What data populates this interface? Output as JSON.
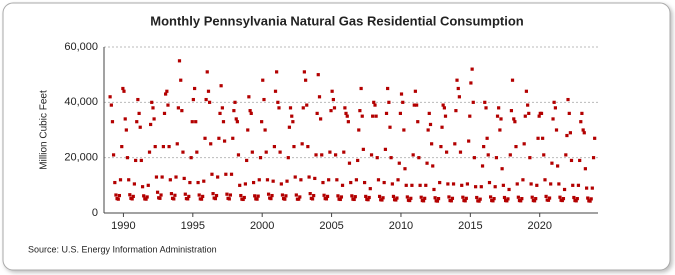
{
  "chart_data": {
    "type": "scatter",
    "title": "Monthly Pennsylvania Natural Gas Residential Consumption",
    "y_label": "Million Cubic Feet",
    "source": "Source: U.S. Energy Information Administration",
    "color": "#b30000",
    "grid": true,
    "xlim": [
      1988.6,
      2024.2
    ],
    "xticks": [
      1990,
      1995,
      2000,
      2005,
      2010,
      2015,
      2020
    ],
    "ylim": [
      0,
      60000
    ],
    "yticks": [
      {
        "value": 0,
        "label": "0"
      },
      {
        "value": 20000,
        "label": "20,000"
      },
      {
        "value": 40000,
        "label": "40,000"
      },
      {
        "value": 60000,
        "label": "60,000"
      }
    ],
    "x": [
      1989.04,
      1989.13,
      1989.21,
      1989.29,
      1989.38,
      1989.46,
      1989.54,
      1989.63,
      1989.71,
      1989.79,
      1989.88,
      1989.96,
      1990.04,
      1990.13,
      1990.21,
      1990.29,
      1990.38,
      1990.46,
      1990.54,
      1990.63,
      1990.71,
      1990.79,
      1990.88,
      1990.96,
      1991.04,
      1991.13,
      1991.21,
      1991.29,
      1991.38,
      1991.46,
      1991.54,
      1991.63,
      1991.71,
      1991.79,
      1991.88,
      1991.96,
      1992.04,
      1992.13,
      1992.21,
      1992.29,
      1992.38,
      1992.46,
      1992.54,
      1992.63,
      1992.71,
      1992.79,
      1992.88,
      1992.96,
      1993.04,
      1993.13,
      1993.21,
      1993.29,
      1993.38,
      1993.46,
      1993.54,
      1993.63,
      1993.71,
      1993.79,
      1993.88,
      1993.96,
      1994.04,
      1994.13,
      1994.21,
      1994.29,
      1994.38,
      1994.46,
      1994.54,
      1994.63,
      1994.71,
      1994.79,
      1994.88,
      1994.96,
      1995.04,
      1995.13,
      1995.21,
      1995.29,
      1995.38,
      1995.46,
      1995.54,
      1995.63,
      1995.71,
      1995.79,
      1995.88,
      1995.96,
      1996.04,
      1996.13,
      1996.21,
      1996.29,
      1996.38,
      1996.46,
      1996.54,
      1996.63,
      1996.71,
      1996.79,
      1996.88,
      1996.96,
      1997.04,
      1997.13,
      1997.21,
      1997.29,
      1997.38,
      1997.46,
      1997.54,
      1997.63,
      1997.71,
      1997.79,
      1997.88,
      1997.96,
      1998.04,
      1998.13,
      1998.21,
      1998.29,
      1998.38,
      1998.46,
      1998.54,
      1998.63,
      1998.71,
      1998.79,
      1998.88,
      1998.96,
      1999.04,
      1999.13,
      1999.21,
      1999.29,
      1999.38,
      1999.46,
      1999.54,
      1999.63,
      1999.71,
      1999.79,
      1999.88,
      1999.96,
      2000.04,
      2000.13,
      2000.21,
      2000.29,
      2000.38,
      2000.46,
      2000.54,
      2000.63,
      2000.71,
      2000.79,
      2000.88,
      2000.96,
      2001.04,
      2001.13,
      2001.21,
      2001.29,
      2001.38,
      2001.46,
      2001.54,
      2001.63,
      2001.71,
      2001.79,
      2001.88,
      2001.96,
      2002.04,
      2002.13,
      2002.21,
      2002.29,
      2002.38,
      2002.46,
      2002.54,
      2002.63,
      2002.71,
      2002.79,
      2002.88,
      2002.96,
      2003.04,
      2003.13,
      2003.21,
      2003.29,
      2003.38,
      2003.46,
      2003.54,
      2003.63,
      2003.71,
      2003.79,
      2003.88,
      2003.96,
      2004.04,
      2004.13,
      2004.21,
      2004.29,
      2004.38,
      2004.46,
      2004.54,
      2004.63,
      2004.71,
      2004.79,
      2004.88,
      2004.96,
      2005.04,
      2005.13,
      2005.21,
      2005.29,
      2005.38,
      2005.46,
      2005.54,
      2005.63,
      2005.71,
      2005.79,
      2005.88,
      2005.96,
      2006.04,
      2006.13,
      2006.21,
      2006.29,
      2006.38,
      2006.46,
      2006.54,
      2006.63,
      2006.71,
      2006.79,
      2006.88,
      2006.96,
      2007.04,
      2007.13,
      2007.21,
      2007.29,
      2007.38,
      2007.46,
      2007.54,
      2007.63,
      2007.71,
      2007.79,
      2007.88,
      2007.96,
      2008.04,
      2008.13,
      2008.21,
      2008.29,
      2008.38,
      2008.46,
      2008.54,
      2008.63,
      2008.71,
      2008.79,
      2008.88,
      2008.96,
      2009.04,
      2009.13,
      2009.21,
      2009.29,
      2009.38,
      2009.46,
      2009.54,
      2009.63,
      2009.71,
      2009.79,
      2009.88,
      2009.96,
      2010.04,
      2010.13,
      2010.21,
      2010.29,
      2010.38,
      2010.46,
      2010.54,
      2010.63,
      2010.71,
      2010.79,
      2010.88,
      2010.96,
      2011.04,
      2011.13,
      2011.21,
      2011.29,
      2011.38,
      2011.46,
      2011.54,
      2011.63,
      2011.71,
      2011.79,
      2011.88,
      2011.96,
      2012.04,
      2012.13,
      2012.21,
      2012.29,
      2012.38,
      2012.46,
      2012.54,
      2012.63,
      2012.71,
      2012.79,
      2012.88,
      2012.96,
      2013.04,
      2013.13,
      2013.21,
      2013.29,
      2013.38,
      2013.46,
      2013.54,
      2013.63,
      2013.71,
      2013.79,
      2013.88,
      2013.96,
      2014.04,
      2014.13,
      2014.21,
      2014.29,
      2014.38,
      2014.46,
      2014.54,
      2014.63,
      2014.71,
      2014.79,
      2014.88,
      2014.96,
      2015.04,
      2015.13,
      2015.21,
      2015.29,
      2015.38,
      2015.46,
      2015.54,
      2015.63,
      2015.71,
      2015.79,
      2015.88,
      2015.96,
      2016.04,
      2016.13,
      2016.21,
      2016.29,
      2016.38,
      2016.46,
      2016.54,
      2016.63,
      2016.71,
      2016.79,
      2016.88,
      2016.96,
      2017.04,
      2017.13,
      2017.21,
      2017.29,
      2017.38,
      2017.46,
      2017.54,
      2017.63,
      2017.71,
      2017.79,
      2017.88,
      2017.96,
      2018.04,
      2018.13,
      2018.21,
      2018.29,
      2018.38,
      2018.46,
      2018.54,
      2018.63,
      2018.71,
      2018.79,
      2018.88,
      2018.96,
      2019.04,
      2019.13,
      2019.21,
      2019.29,
      2019.38,
      2019.46,
      2019.54,
      2019.63,
      2019.71,
      2019.79,
      2019.88,
      2019.96,
      2020.04,
      2020.13,
      2020.21,
      2020.29,
      2020.38,
      2020.46,
      2020.54,
      2020.63,
      2020.71,
      2020.79,
      2020.88,
      2020.96,
      2021.04,
      2021.13,
      2021.21,
      2021.29,
      2021.38,
      2021.46,
      2021.54,
      2021.63,
      2021.71,
      2021.79,
      2021.88,
      2021.96,
      2022.04,
      2022.13,
      2022.21,
      2022.29,
      2022.38,
      2022.46,
      2022.54,
      2022.63,
      2022.71,
      2022.79,
      2022.88,
      2022.96,
      2023.04,
      2023.13,
      2023.21,
      2023.29,
      2023.38,
      2023.46,
      2023.54,
      2023.63,
      2023.71,
      2023.79,
      2023.88,
      2023.96
    ],
    "values": [
      42000,
      39000,
      33000,
      21000,
      11000,
      6500,
      5200,
      5000,
      6300,
      12000,
      24000,
      45000,
      44000,
      34000,
      30000,
      20000,
      12000,
      6600,
      5300,
      5100,
      6000,
      10500,
      19000,
      33000,
      41000,
      36000,
      31000,
      19000,
      9500,
      6200,
      5100,
      5000,
      5800,
      10000,
      22000,
      32000,
      40000,
      38000,
      34000,
      24000,
      13000,
      7500,
      5500,
      5300,
      6500,
      13000,
      24000,
      36000,
      43000,
      44000,
      39000,
      24000,
      12000,
      7000,
      5300,
      5100,
      6400,
      13000,
      25000,
      38000,
      55000,
      48000,
      37000,
      22000,
      12500,
      6800,
      5200,
      5100,
      6000,
      11000,
      20000,
      33000,
      41000,
      45000,
      33000,
      22000,
      11000,
      6500,
      5100,
      5000,
      6000,
      11500,
      27000,
      41000,
      51000,
      44000,
      40000,
      25000,
      14000,
      7000,
      5400,
      5200,
      6300,
      13000,
      27000,
      36000,
      46000,
      38000,
      33000,
      26000,
      14000,
      6800,
      5300,
      5100,
      6500,
      14000,
      27000,
      37000,
      40000,
      34000,
      33000,
      21000,
      10000,
      6300,
      5000,
      4900,
      5600,
      10500,
      19000,
      30000,
      42000,
      37000,
      36000,
      22000,
      11000,
      6200,
      5100,
      5000,
      6100,
      12000,
      20000,
      33000,
      48000,
      41000,
      30000,
      22000,
      12000,
      6800,
      5400,
      5200,
      6300,
      11500,
      24000,
      44000,
      51000,
      40000,
      38000,
      22000,
      10500,
      6500,
      5200,
      5000,
      6200,
      11500,
      20000,
      31000,
      38000,
      35000,
      33000,
      24000,
      13000,
      6500,
      5000,
      5000,
      5800,
      12000,
      25000,
      38000,
      51000,
      48000,
      39000,
      24000,
      13000,
      7000,
      5300,
      5100,
      6300,
      12500,
      21000,
      36000,
      50000,
      42000,
      34000,
      21000,
      11000,
      6400,
      5200,
      5100,
      6000,
      12000,
      22000,
      37000,
      44000,
      41000,
      38000,
      21000,
      12000,
      6200,
      5000,
      4900,
      5800,
      10000,
      22000,
      38000,
      36000,
      35000,
      33000,
      18000,
      11000,
      6200,
      5000,
      4900,
      5900,
      12000,
      19000,
      30000,
      37000,
      45000,
      35000,
      23000,
      11000,
      6000,
      4900,
      4800,
      5600,
      8800,
      21000,
      35000,
      40000,
      39000,
      35000,
      20000,
      12000,
      6000,
      4800,
      4700,
      5500,
      11000,
      23000,
      36000,
      45000,
      40000,
      31000,
      20000,
      10500,
      6000,
      4800,
      4700,
      5400,
      12000,
      18000,
      36000,
      43000,
      40000,
      30000,
      16000,
      10000,
      5800,
      4600,
      4500,
      5300,
      10000,
      21000,
      39000,
      44000,
      39000,
      33000,
      20000,
      10000,
      5700,
      4500,
      4400,
      5300,
      10000,
      18000,
      30000,
      36000,
      32000,
      25000,
      17000,
      8500,
      5500,
      4400,
      4300,
      5200,
      11000,
      24000,
      31000,
      39000,
      38000,
      35000,
      22000,
      10500,
      5800,
      4500,
      4400,
      5300,
      10500,
      25000,
      37000,
      48000,
      45000,
      42000,
      22000,
      10000,
      5700,
      4500,
      4400,
      5300,
      10500,
      26000,
      35000,
      47000,
      52000,
      40000,
      20000,
      9500,
      5600,
      4400,
      4300,
      5000,
      9500,
      17000,
      24000,
      40000,
      38000,
      27000,
      21000,
      11000,
      5800,
      4500,
      4400,
      5200,
      9500,
      20000,
      35000,
      38000,
      30000,
      34000,
      16000,
      10000,
      5600,
      4500,
      4400,
      5100,
      8500,
      21000,
      37000,
      48000,
      34000,
      33000,
      24000,
      10500,
      5700,
      4500,
      4400,
      5200,
      12000,
      25000,
      35000,
      44000,
      39000,
      36000,
      20000,
      10500,
      5700,
      4500,
      4400,
      5200,
      10000,
      27000,
      35000,
      36000,
      36000,
      27000,
      21000,
      12000,
      6000,
      4700,
      4600,
      5400,
      10500,
      18000,
      34000,
      40000,
      38000,
      30000,
      17000,
      10500,
      5700,
      4600,
      4500,
      5200,
      8500,
      21000,
      28000,
      41000,
      36000,
      29000,
      19000,
      10000,
      5600,
      4500,
      4400,
      5200,
      10000,
      19000,
      33000,
      36000,
      30000,
      29000,
      16000,
      9000,
      5400,
      4400,
      4300,
      5100,
      9000,
      20000,
      27000
    ]
  }
}
